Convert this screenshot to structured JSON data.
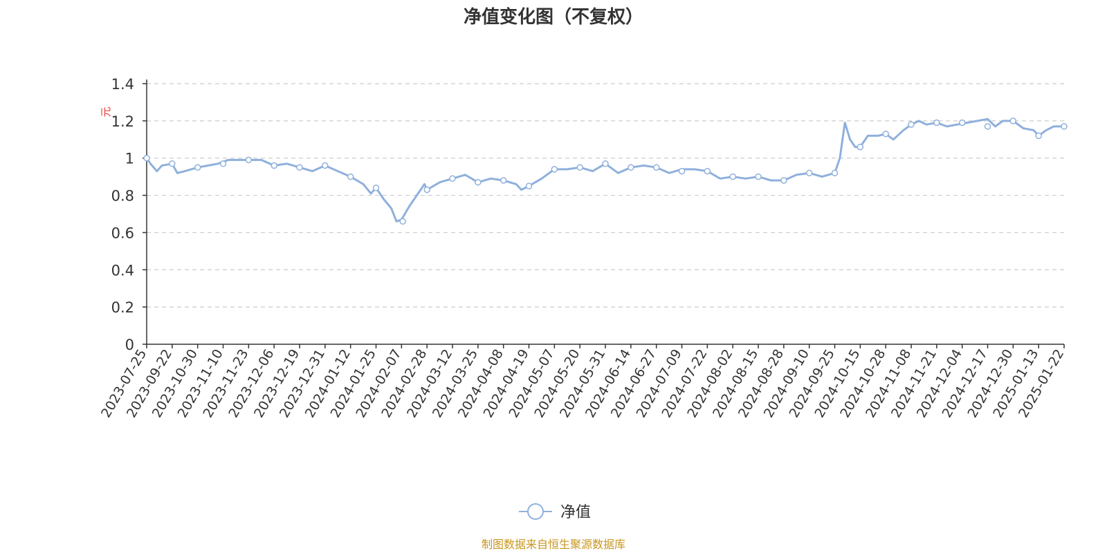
{
  "chart_data": {
    "type": "line",
    "title": "净值变化图（不复权）",
    "ylabel": "元",
    "ylim": [
      0,
      1.4
    ],
    "yticks": [
      "0",
      "0.2",
      "0.4",
      "0.6",
      "0.8",
      "1",
      "1.2",
      "1.4"
    ],
    "grid": true,
    "legend_position": "bottom-center",
    "x_tick_labels": [
      "2023-07-25",
      "2023-09-22",
      "2023-10-30",
      "2023-11-10",
      "2023-11-23",
      "2023-12-06",
      "2023-12-19",
      "2023-12-31",
      "2024-01-12",
      "2024-01-25",
      "2024-02-07",
      "2024-02-28",
      "2024-03-12",
      "2024-03-25",
      "2024-04-08",
      "2024-04-19",
      "2024-05-07",
      "2024-05-20",
      "2024-05-31",
      "2024-06-14",
      "2024-06-27",
      "2024-07-09",
      "2024-07-22",
      "2024-08-02",
      "2024-08-15",
      "2024-08-28",
      "2024-09-10",
      "2024-09-25",
      "2024-10-15",
      "2024-10-28",
      "2024-11-08",
      "2024-11-21",
      "2024-12-04",
      "2024-12-17",
      "2024-12-30",
      "2025-01-13",
      "2025-01-22"
    ],
    "series": [
      {
        "name": "净值",
        "color": "#8fb0dc",
        "points": [
          [
            0,
            1.0
          ],
          [
            0.15,
            0.97
          ],
          [
            0.4,
            0.93
          ],
          [
            0.6,
            0.96
          ],
          [
            1.0,
            0.97
          ],
          [
            1.2,
            0.92
          ],
          [
            1.5,
            0.93
          ],
          [
            2.0,
            0.95
          ],
          [
            2.4,
            0.96
          ],
          [
            2.8,
            0.97
          ],
          [
            3.2,
            0.99
          ],
          [
            3.6,
            0.99
          ],
          [
            4.0,
            0.99
          ],
          [
            4.5,
            0.99
          ],
          [
            5.0,
            0.96
          ],
          [
            5.5,
            0.97
          ],
          [
            6.0,
            0.95
          ],
          [
            6.5,
            0.93
          ],
          [
            7.0,
            0.96
          ],
          [
            7.5,
            0.93
          ],
          [
            8.0,
            0.9
          ],
          [
            8.5,
            0.86
          ],
          [
            8.8,
            0.81
          ],
          [
            9.0,
            0.84
          ],
          [
            9.3,
            0.78
          ],
          [
            9.6,
            0.73
          ],
          [
            9.8,
            0.66
          ],
          [
            10.0,
            0.67
          ],
          [
            10.3,
            0.74
          ],
          [
            10.6,
            0.8
          ],
          [
            10.9,
            0.86
          ],
          [
            11.0,
            0.83
          ],
          [
            11.5,
            0.87
          ],
          [
            12.0,
            0.89
          ],
          [
            12.5,
            0.91
          ],
          [
            13.0,
            0.87
          ],
          [
            13.5,
            0.89
          ],
          [
            14.0,
            0.88
          ],
          [
            14.5,
            0.86
          ],
          [
            14.7,
            0.83
          ],
          [
            15.0,
            0.85
          ],
          [
            15.5,
            0.89
          ],
          [
            16.0,
            0.94
          ],
          [
            16.5,
            0.94
          ],
          [
            17.0,
            0.95
          ],
          [
            17.5,
            0.93
          ],
          [
            18.0,
            0.97
          ],
          [
            18.5,
            0.92
          ],
          [
            19.0,
            0.95
          ],
          [
            19.5,
            0.96
          ],
          [
            20.0,
            0.95
          ],
          [
            20.5,
            0.92
          ],
          [
            21.0,
            0.94
          ],
          [
            21.5,
            0.94
          ],
          [
            22.0,
            0.93
          ],
          [
            22.5,
            0.89
          ],
          [
            23.0,
            0.9
          ],
          [
            23.5,
            0.89
          ],
          [
            24.0,
            0.9
          ],
          [
            24.5,
            0.88
          ],
          [
            25.0,
            0.88
          ],
          [
            25.5,
            0.91
          ],
          [
            26.0,
            0.92
          ],
          [
            26.5,
            0.9
          ],
          [
            27.0,
            0.92
          ],
          [
            27.2,
            1.0
          ],
          [
            27.4,
            1.19
          ],
          [
            27.6,
            1.1
          ],
          [
            27.8,
            1.06
          ],
          [
            28.0,
            1.06
          ],
          [
            28.3,
            1.12
          ],
          [
            28.7,
            1.12
          ],
          [
            29.0,
            1.13
          ],
          [
            29.3,
            1.1
          ],
          [
            29.7,
            1.15
          ],
          [
            30.0,
            1.18
          ],
          [
            30.3,
            1.2
          ],
          [
            30.6,
            1.18
          ],
          [
            31.0,
            1.19
          ],
          [
            31.4,
            1.17
          ],
          [
            31.8,
            1.18
          ],
          [
            32.2,
            1.19
          ],
          [
            32.6,
            1.2
          ],
          [
            33.0,
            1.21
          ],
          [
            33.3,
            1.17
          ],
          [
            33.6,
            1.2
          ],
          [
            34.0,
            1.2
          ],
          [
            34.4,
            1.16
          ],
          [
            34.8,
            1.15
          ],
          [
            35.0,
            1.12
          ],
          [
            35.3,
            1.15
          ],
          [
            35.6,
            1.17
          ],
          [
            36.0,
            1.17
          ]
        ],
        "markers": [
          [
            0,
            1.0
          ],
          [
            1.0,
            0.97
          ],
          [
            2.0,
            0.95
          ],
          [
            3.0,
            0.97
          ],
          [
            4.0,
            0.99
          ],
          [
            5.0,
            0.96
          ],
          [
            6.0,
            0.95
          ],
          [
            7.0,
            0.96
          ],
          [
            8.0,
            0.9
          ],
          [
            9.0,
            0.84
          ],
          [
            10.05,
            0.66
          ],
          [
            11.0,
            0.83
          ],
          [
            12.0,
            0.89
          ],
          [
            13.0,
            0.87
          ],
          [
            14.0,
            0.88
          ],
          [
            15.0,
            0.85
          ],
          [
            16.0,
            0.94
          ],
          [
            17.0,
            0.95
          ],
          [
            18.0,
            0.97
          ],
          [
            19.0,
            0.95
          ],
          [
            20.0,
            0.95
          ],
          [
            21.0,
            0.93
          ],
          [
            22.0,
            0.93
          ],
          [
            23.0,
            0.9
          ],
          [
            24.0,
            0.9
          ],
          [
            25.0,
            0.88
          ],
          [
            26.0,
            0.92
          ],
          [
            27.0,
            0.92
          ],
          [
            28.0,
            1.06
          ],
          [
            29.0,
            1.13
          ],
          [
            30.0,
            1.18
          ],
          [
            31.0,
            1.19
          ],
          [
            32.0,
            1.19
          ],
          [
            33.0,
            1.17
          ],
          [
            34.0,
            1.2
          ],
          [
            35.0,
            1.12
          ],
          [
            36.0,
            1.17
          ]
        ]
      }
    ]
  },
  "footer": {
    "source": "制图数据来自恒生聚源数据库"
  }
}
